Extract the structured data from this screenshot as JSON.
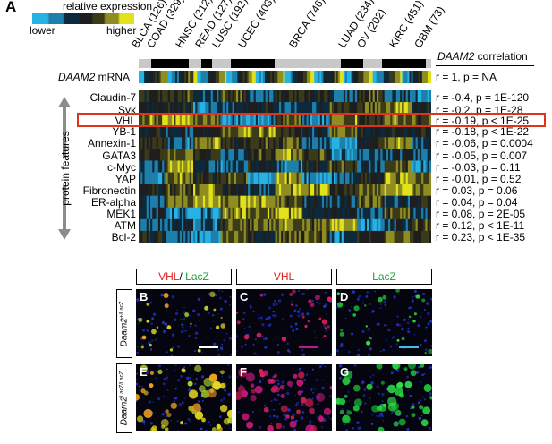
{
  "panel_label": "A",
  "legend": {
    "title": "relative expression",
    "lower": "lower",
    "higher": "higher",
    "colors": [
      "#27b2e4",
      "#1f7fab",
      "#0c2a3c",
      "#1e1e1e",
      "#3b3b1a",
      "#8f8d22",
      "#e2e21b"
    ]
  },
  "cancers": [
    {
      "label": "BLCA (126)"
    },
    {
      "label": "COAD (329)"
    },
    {
      "label": "HNSC (212)"
    },
    {
      "label": "READ (127)"
    },
    {
      "label": "LUSC (192)"
    },
    {
      "label": "UCEC (403)"
    },
    {
      "label": "BRCA (746)"
    },
    {
      "label": "LUAD (234)"
    },
    {
      "label": "OV (202)"
    },
    {
      "label": "KIRC (451)"
    },
    {
      "label": "GBM (73)"
    }
  ],
  "correlation_title_gene": "DAAM2",
  "correlation_title_rest": " correlation",
  "mrna": {
    "gene": "DAAM2",
    "suffix": " mRNA",
    "corr": "r = 1, p = NA"
  },
  "features": [
    {
      "name": "Claudin-7",
      "corr": "r = -0.4, p = 1E-120"
    },
    {
      "name": "Syk",
      "corr": "r = -0.2, p = 1E-28"
    },
    {
      "name": "VHL",
      "corr": "r = -0.19, p < 1E-25"
    },
    {
      "name": "YB-1",
      "corr": "r = -0.18, p < 1E-22"
    },
    {
      "name": "Annexin-1",
      "corr": "r = -0.06, p = 0.0004"
    },
    {
      "name": "GATA3",
      "corr": "r = -0.05, p = 0.007"
    },
    {
      "name": "c-Myc",
      "corr": "r = -0.03, p = 0.11"
    },
    {
      "name": "YAP",
      "corr": "r = -0.01, p = 0.52"
    },
    {
      "name": "Fibronectin",
      "corr": "r = 0.03, p = 0.06"
    },
    {
      "name": "ER-alpha",
      "corr": "r = 0.04, p = 0.04"
    },
    {
      "name": "MEK1",
      "corr": "r = 0.08, p = 2E-05"
    },
    {
      "name": "ATM",
      "corr": "r = 0.12, p < 1E-11"
    },
    {
      "name": "Bcl-2",
      "corr": "r = 0.23, p < 1E-35"
    }
  ],
  "protein_features_label": "protein features",
  "highlight_color": "#e0321d",
  "micro": {
    "col1_a": "VHL",
    "col1_sep": "/ ",
    "col1_b": "LacZ",
    "col2": "VHL",
    "col3": "LacZ",
    "row1_gene": "Daam2",
    "row1_sup": "+/LacZ",
    "row2_gene": "Daam2",
    "row2_sup": "LacZ/LacZ",
    "panels": [
      "B",
      "C",
      "D",
      "E",
      "F",
      "G"
    ]
  }
}
